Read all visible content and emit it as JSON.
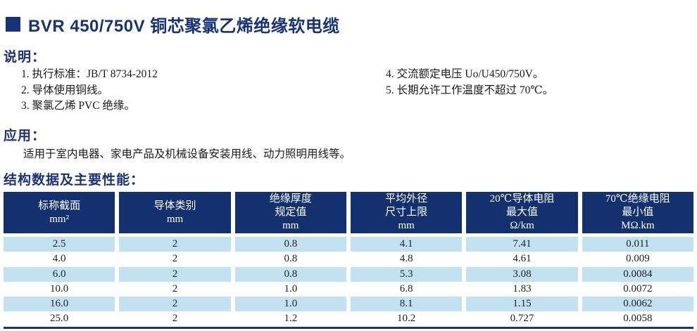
{
  "title": {
    "text": "BVR 450/750V 铜芯聚氯乙烯绝缘软电缆"
  },
  "colors": {
    "heading_navy": "#1b3478",
    "title_navy": "#16337a",
    "table_header_bg": "#12316e",
    "stripe_blue": "#c2e2f2",
    "bottom_border": "#1b3478"
  },
  "description": {
    "heading": "说明：",
    "items_left": [
      "1. 执行标准：JB/T  8734-2012",
      "2. 导体使用铜线。",
      "3. 聚氯乙烯 PVC 绝缘。"
    ],
    "items_right": [
      "4. 交流额定电压 Uo/U450/750V。",
      "5. 长期允许工作温度不超过 70℃。"
    ]
  },
  "application": {
    "heading": "应用：",
    "text": "适用于室内电器、家电产品及机械设备安装用线、动力照明用线等。"
  },
  "table": {
    "heading": "结构数据及主要性能：",
    "headers": [
      [
        "标称截面",
        "mm²"
      ],
      [
        "导体类别",
        "mm"
      ],
      [
        "绝缘厚度",
        "规定值",
        "mm"
      ],
      [
        "平均外径",
        "尺寸上限",
        "mm"
      ],
      [
        "20℃导体电阻",
        "最大值",
        "Ω/km"
      ],
      [
        "70℃绝缘电阻",
        "最小值",
        "MΩ.km"
      ]
    ],
    "rows": [
      [
        "2.5",
        "2",
        "0.8",
        "4.1",
        "7.41",
        "0.011"
      ],
      [
        "4.0",
        "2",
        "0.8",
        "4.8",
        "4.61",
        "0.009"
      ],
      [
        "6.0",
        "2",
        "0.8",
        "5.3",
        "3.08",
        "0.0084"
      ],
      [
        "10.0",
        "2",
        "1.0",
        "6.8",
        "1.83",
        "0.0072"
      ],
      [
        "16.0",
        "2",
        "1.0",
        "8.1",
        "1.15",
        "0.0062"
      ],
      [
        "25.0",
        "2",
        "1.2",
        "10.2",
        "0.727",
        "0.0058"
      ]
    ]
  }
}
